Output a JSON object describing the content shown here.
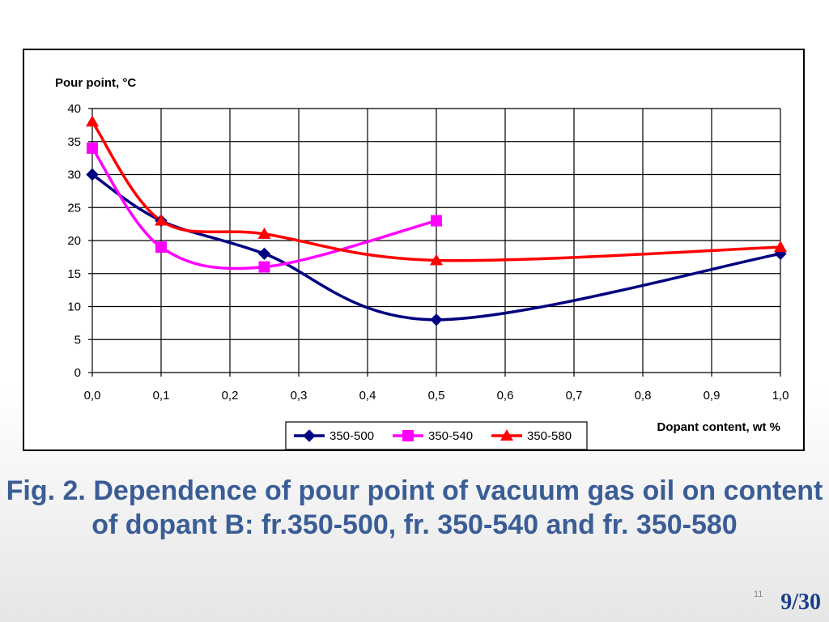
{
  "chart_data": {
    "type": "line",
    "ylabel": "Pour point, °C",
    "xlabel": "Dopant content, wt %",
    "xlim": [
      0,
      1.0
    ],
    "ylim": [
      0,
      40
    ],
    "x_ticks": [
      "0,0",
      "0,1",
      "0,2",
      "0,3",
      "0,4",
      "0,5",
      "0,6",
      "0,7",
      "0,8",
      "0,9",
      "1,0"
    ],
    "y_ticks": [
      "0",
      "5",
      "10",
      "15",
      "20",
      "25",
      "30",
      "35",
      "40"
    ],
    "grid": true,
    "legend_position": "bottom",
    "series": [
      {
        "name": "350-500",
        "color": "#000080",
        "marker": "diamond",
        "x": [
          0.0,
          0.1,
          0.25,
          0.5,
          1.0
        ],
        "y": [
          30,
          23,
          18,
          8,
          18
        ]
      },
      {
        "name": "350-540",
        "color": "#ff00ff",
        "marker": "square",
        "x": [
          0.0,
          0.1,
          0.25,
          0.5
        ],
        "y": [
          34,
          19,
          16,
          23
        ]
      },
      {
        "name": "350-580",
        "color": "#ff0000",
        "marker": "triangle",
        "x": [
          0.0,
          0.1,
          0.25,
          0.5,
          1.0
        ],
        "y": [
          38,
          23,
          21,
          17,
          19
        ]
      }
    ]
  },
  "caption": "Fig. 2. Dependence of pour point of vacuum gas oil on content of dopant B: fr.350-500, fr. 350-540 and fr. 350-580",
  "slide_number_small": "11",
  "page_indicator": "9/30"
}
